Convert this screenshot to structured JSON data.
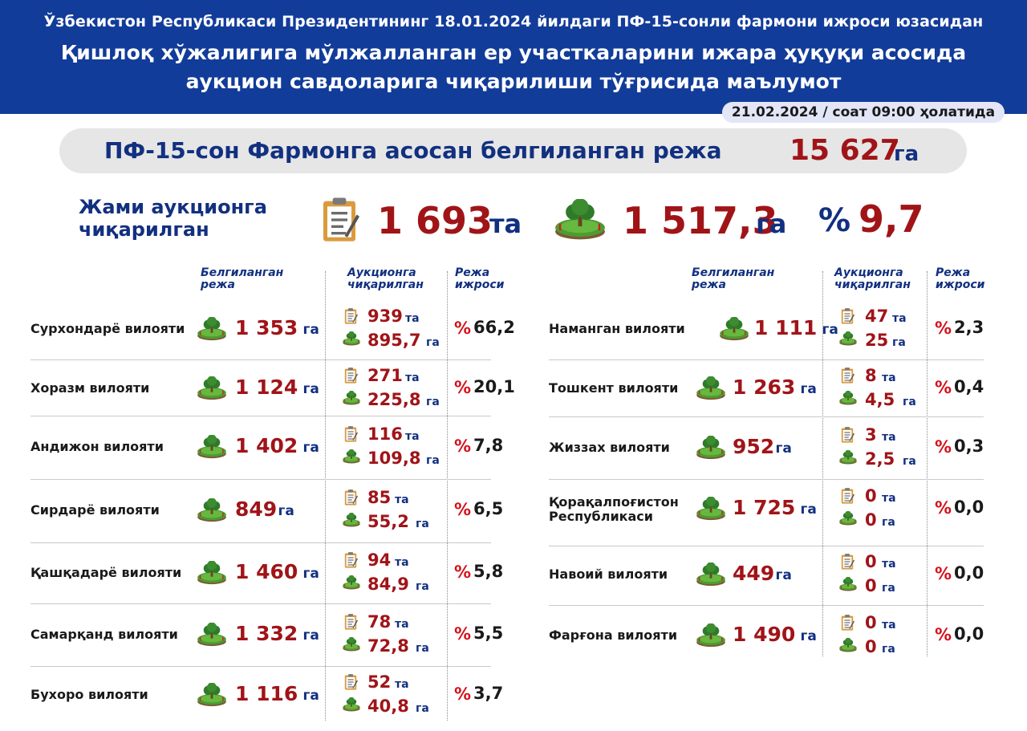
{
  "header": {
    "line1": "Ўзбекистон Республикаси Президентининг 18.01.2024 йилдаги ПФ-15-сонли фармони ижроси юзасидан",
    "line2": "Қишлоқ хўжалигига мўлжалланган ер участкаларини ижара ҳуқуқи асосида",
    "line3": "аукцион савдоларига чиқарилиши тўғрисида маълумот"
  },
  "date_badge": "21.02.2024 / соат 09:00 ҳолатида",
  "plan": {
    "label": "ПФ-15-сон Фармонга асосан белгиланган режа",
    "value": "15 627",
    "unit": "га"
  },
  "total": {
    "label_line1": "Жами аукционга",
    "label_line2": "чиқарилган",
    "count": "1 693",
    "count_unit": "та",
    "area": "1 517,3",
    "area_unit": "га",
    "pct_sign": "%",
    "pct": "9,7"
  },
  "columns": {
    "plan_l1": "Белгиланган",
    "plan_l2": "режа",
    "auc_l1": "Аукционга",
    "auc_l2": "чиқарилган",
    "exec_l1": "Режа",
    "exec_l2": "ижроси"
  },
  "units": {
    "ha": "га",
    "pcs": "та",
    "pct": "%"
  },
  "icons": {
    "doc": "clipboard-icon",
    "land": "land-plot-icon"
  },
  "colors": {
    "header_bg": "#123c9a",
    "value_red": "#a01418",
    "unit_blue": "#123080",
    "pct_red": "#d4121a"
  },
  "left_regions": [
    {
      "name": "Сурхондарё вилояти",
      "plan": "1 353",
      "count": "939",
      "area": "895,7",
      "pct": "66,2"
    },
    {
      "name": "Хоразм вилояти",
      "plan": "1 124",
      "count": "271",
      "area": "225,8",
      "pct": "20,1"
    },
    {
      "name": "Андижон вилояти",
      "plan": "1 402",
      "count": "116",
      "area": "109,8",
      "pct": "7,8"
    },
    {
      "name": "Сирдарё вилояти",
      "plan": "849",
      "count": "85",
      "area": "55,2",
      "pct": "6,5"
    },
    {
      "name": "Қашқадарё вилояти",
      "plan": "1 460",
      "count": "94",
      "area": "84,9",
      "pct": "5,8"
    },
    {
      "name": "Самарқанд вилояти",
      "plan": "1 332",
      "count": "78",
      "area": "72,8",
      "pct": "5,5"
    },
    {
      "name": "Бухоро вилояти",
      "plan": "1 116",
      "count": "52",
      "area": "40,8",
      "pct": "3,7"
    }
  ],
  "right_regions": [
    {
      "name": "Наманган вилояти",
      "plan": "1 111",
      "count": "47",
      "area": "25",
      "pct": "2,3"
    },
    {
      "name": "Тошкент вилояти",
      "plan": "1 263",
      "count": "8",
      "area": "4,5",
      "pct": "0,4"
    },
    {
      "name": "Жиззах вилояти",
      "plan": "952",
      "count": "3",
      "area": "2,5",
      "pct": "0,3"
    },
    {
      "name": "Қорақалпоғистон Республикаси",
      "name_l1": "Қорақалпоғистон",
      "name_l2": "Республикаси",
      "plan": "1 725",
      "count": "0",
      "area": "0",
      "pct": "0,0"
    },
    {
      "name": "Навоий вилояти",
      "plan": "449",
      "count": "0",
      "area": "0",
      "pct": "0,0"
    },
    {
      "name": "Фарғона вилояти",
      "plan": "1 490",
      "count": "0",
      "area": "0",
      "pct": "0,0"
    }
  ]
}
